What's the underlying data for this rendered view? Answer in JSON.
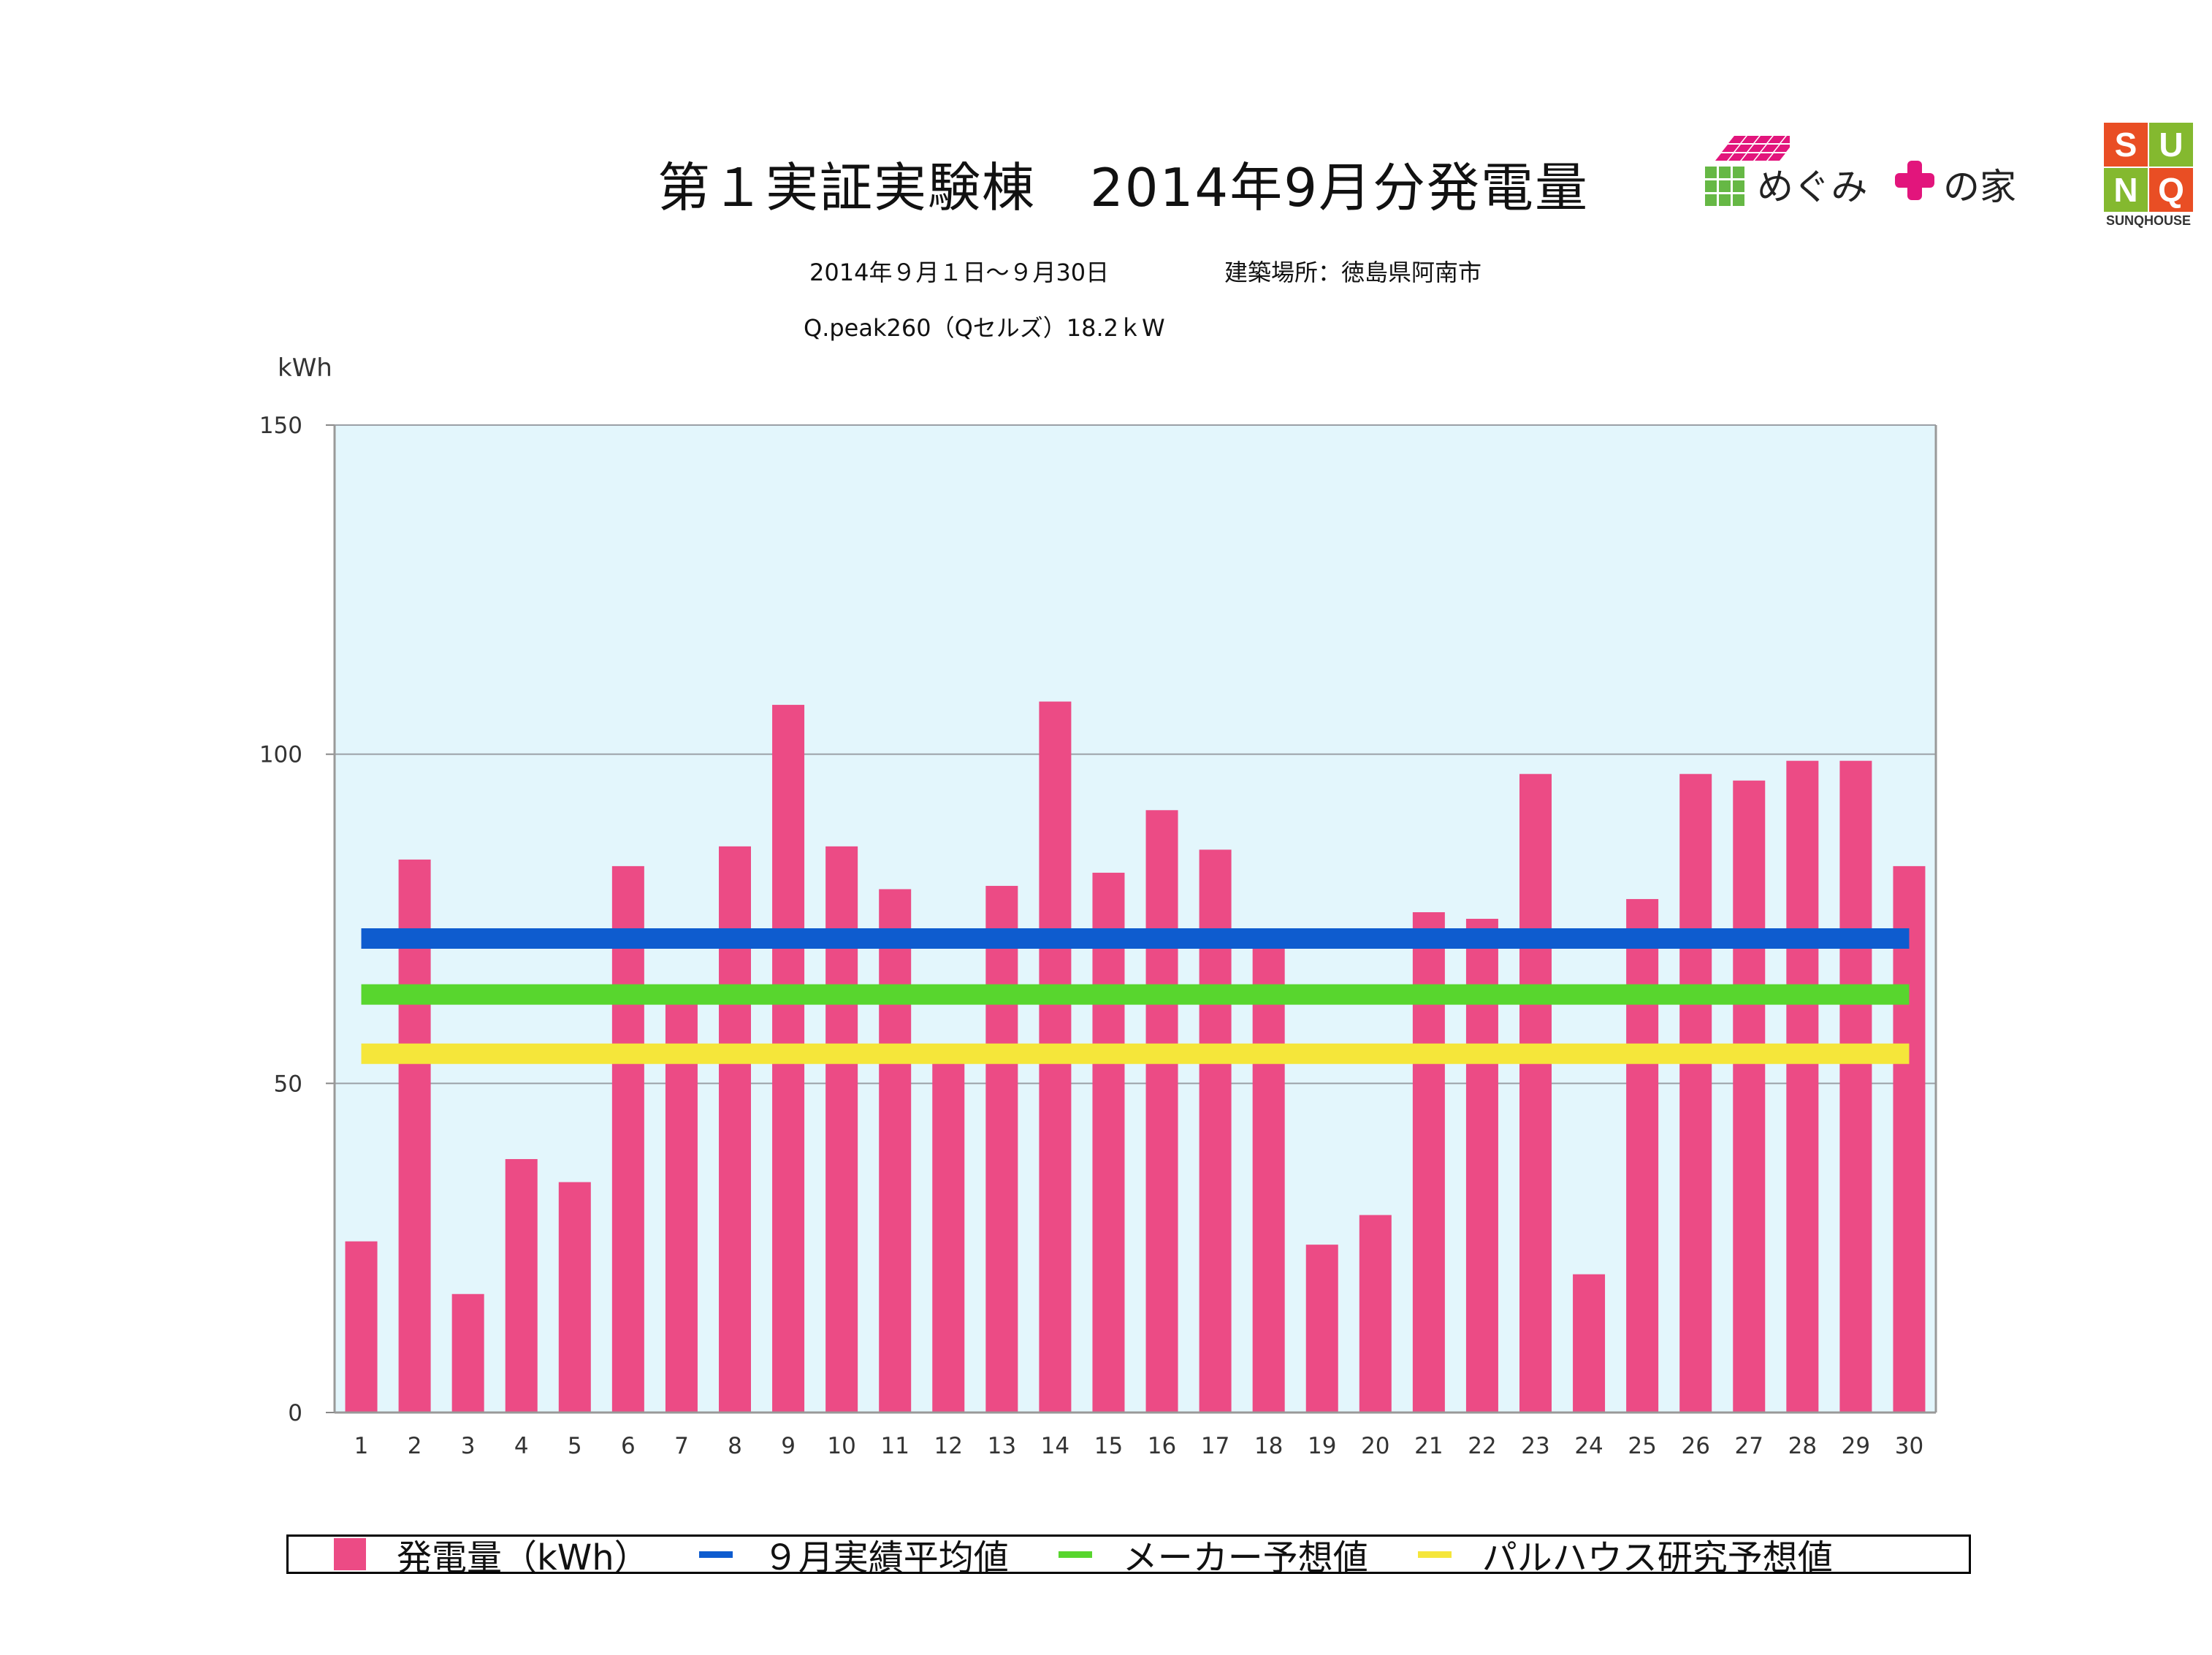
{
  "title": "第１実証実験棟　2014年9月分発電量",
  "subtitle_period": "2014年９月１日～９月30日",
  "subtitle_site": "建築場所：徳島県阿南市",
  "subtitle_system": "Q.peak260（Qセルズ）18.2ｋW",
  "logo_meguми_text1": "めぐみ",
  "logo_meguми_text2": "の家",
  "logo_sunq": {
    "letters": [
      "S",
      "U",
      "N",
      "Q"
    ],
    "caption": "SUNQHOUSE"
  },
  "colors": {
    "bar": "#ec4b85",
    "plot_bg": "#e3f6fc",
    "avg_line": "#0e5ccf",
    "maker_line": "#58d62e",
    "research_line": "#f5e63a",
    "logo_pink": "#e2157c",
    "logo_green": "#66b845",
    "logo_red": "#e94e24",
    "logo_lime": "#84b92f"
  },
  "chart_data": {
    "type": "bar",
    "ylabel": "kWh",
    "ylim": [
      0,
      150
    ],
    "yticks": [
      0,
      50,
      100,
      150
    ],
    "grid": true,
    "categories": [
      "1",
      "2",
      "3",
      "4",
      "5",
      "6",
      "7",
      "8",
      "9",
      "10",
      "11",
      "12",
      "13",
      "14",
      "15",
      "16",
      "17",
      "18",
      "19",
      "20",
      "21",
      "22",
      "23",
      "24",
      "25",
      "26",
      "27",
      "28",
      "29",
      "30"
    ],
    "series": [
      {
        "name": "発電量（kWh）",
        "values": [
          26,
          84,
          18,
          38.5,
          35,
          83,
          63,
          86,
          107.5,
          86,
          79.5,
          55,
          80,
          108,
          82,
          91.5,
          85.5,
          73.5,
          25.5,
          30,
          76,
          75,
          97,
          21,
          78,
          97,
          96,
          99,
          99,
          83
        ]
      }
    ],
    "reference_lines": [
      {
        "name": "９月実績平均値",
        "value": 72
      },
      {
        "name": "メーカー予想値",
        "value": 63.5
      },
      {
        "name": "パルハウス研究予想値",
        "value": 54.5
      }
    ],
    "legend_position": "bottom"
  }
}
